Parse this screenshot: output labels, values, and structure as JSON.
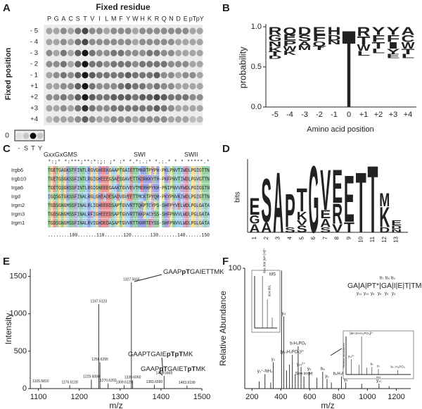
{
  "residue_colors": {
    "DE": "#d7191c",
    "KRH": "#2c3fd1",
    "STNQ": "#1f9e3f",
    "G": "#f5a623",
    "P": "#e0c51a",
    "AVLIMC": "#4aa3df",
    "FWY": "#8e44ad"
  },
  "panel_a": {
    "label": "A",
    "title": "Fixed residue",
    "y_label": "Fixed position",
    "columns": [
      "P",
      "G",
      "A",
      "C",
      "S",
      "T",
      "V",
      "I",
      "L",
      "M",
      "F",
      "Y",
      "W",
      "H",
      "K",
      "R",
      "Q",
      "N",
      "D",
      "E",
      "pT",
      "pY"
    ],
    "rows": [
      "- 5",
      "- 4",
      "- 3",
      "- 2",
      "- 1",
      "+1",
      "+2",
      "+3",
      "+4"
    ],
    "values": [
      [
        0.3,
        0.3,
        0.4,
        0.3,
        0.5,
        0.7,
        0.4,
        0.4,
        0.3,
        0.4,
        0.4,
        0.4,
        0.3,
        0.4,
        0.4,
        0.4,
        0.4,
        0.4,
        0.4,
        0.4,
        0.3,
        0.3
      ],
      [
        0.3,
        0.3,
        0.4,
        0.3,
        0.5,
        0.7,
        0.4,
        0.4,
        0.4,
        0.4,
        0.4,
        0.4,
        0.3,
        0.4,
        0.4,
        0.4,
        0.4,
        0.4,
        0.3,
        0.3,
        0.3,
        0.3
      ],
      [
        0.4,
        0.3,
        0.5,
        0.3,
        0.6,
        0.9,
        0.5,
        0.4,
        0.4,
        0.5,
        0.5,
        0.4,
        0.4,
        0.4,
        0.5,
        0.5,
        0.4,
        0.4,
        0.3,
        0.3,
        0.3,
        0.3
      ],
      [
        0.4,
        0.4,
        0.5,
        0.3,
        0.6,
        0.9,
        0.5,
        0.5,
        0.4,
        0.5,
        0.5,
        0.5,
        0.4,
        0.5,
        0.5,
        0.5,
        0.5,
        0.4,
        0.4,
        0.4,
        0.3,
        0.3
      ],
      [
        0.3,
        0.4,
        0.5,
        0.4,
        0.6,
        0.9,
        0.6,
        0.5,
        0.5,
        0.5,
        0.5,
        0.6,
        0.5,
        0.5,
        0.5,
        0.6,
        0.4,
        0.4,
        0.3,
        0.4,
        0.4,
        0.3
      ],
      [
        0.3,
        0.3,
        0.4,
        0.4,
        0.6,
        0.9,
        0.5,
        0.4,
        0.4,
        0.4,
        0.5,
        0.6,
        0.5,
        0.5,
        0.4,
        0.5,
        0.4,
        0.4,
        0.3,
        0.3,
        0.3,
        0.3
      ],
      [
        0.4,
        0.4,
        0.5,
        0.4,
        0.6,
        0.9,
        0.6,
        0.5,
        0.5,
        0.6,
        0.6,
        0.6,
        0.5,
        0.6,
        0.6,
        0.7,
        0.6,
        0.5,
        0.5,
        0.5,
        0.4,
        0.4
      ],
      [
        0.3,
        0.3,
        0.4,
        0.3,
        0.5,
        0.8,
        0.5,
        0.4,
        0.4,
        0.5,
        0.5,
        0.5,
        0.5,
        0.5,
        0.5,
        0.6,
        0.5,
        0.4,
        0.3,
        0.3,
        0.3,
        0.3
      ],
      [
        0.2,
        0.3,
        0.3,
        0.3,
        0.4,
        0.6,
        0.4,
        0.3,
        0.3,
        0.4,
        0.4,
        0.4,
        0.3,
        0.4,
        0.4,
        0.4,
        0.4,
        0.3,
        0.3,
        0.3,
        0.2,
        0.2
      ]
    ],
    "control_label": "0",
    "control_columns": [
      "-",
      "S",
      "T",
      "Y"
    ],
    "control_values": [
      0.05,
      0.15,
      0.95,
      0.15
    ]
  },
  "panel_b": {
    "label": "B",
    "y_label": "probability",
    "x_label": "Amino acid position",
    "categories": [
      "-5",
      "-4",
      "-3",
      "-2",
      "-1",
      "0",
      "+1",
      "+2",
      "+3",
      "+4"
    ],
    "ylim": [
      0,
      1
    ],
    "yticks": [
      {
        "value": 0,
        "label": "0.0"
      },
      {
        "value": 0.5,
        "label": "0.5"
      },
      {
        "value": 1,
        "label": "1.0"
      }
    ],
    "stacks": [
      [
        {
          "letter": "R",
          "p": 0.1
        },
        {
          "letter": "G",
          "p": 0.08
        },
        {
          "letter": "N",
          "p": 0.07
        },
        {
          "letter": "K",
          "p": 0.06
        },
        {
          "letter": "T",
          "p": 0.05
        },
        {
          "letter": "D",
          "p": 0.04
        }
      ],
      [
        {
          "letter": "Q",
          "p": 0.09
        },
        {
          "letter": "E",
          "p": 0.08
        },
        {
          "letter": "P",
          "p": 0.07
        },
        {
          "letter": "W",
          "p": 0.06
        },
        {
          "letter": "K",
          "p": 0.05
        }
      ],
      [
        {
          "letter": "D",
          "p": 0.1
        },
        {
          "letter": "S",
          "p": 0.08
        },
        {
          "letter": "A",
          "p": 0.06
        },
        {
          "letter": "M",
          "p": 0.05
        }
      ],
      [
        {
          "letter": "E",
          "p": 0.1
        },
        {
          "letter": "F",
          "p": 0.08
        },
        {
          "letter": "Q",
          "p": 0.06
        },
        {
          "letter": "T",
          "p": 0.05
        }
      ],
      [
        {
          "letter": "H",
          "p": 0.1
        },
        {
          "letter": "D",
          "p": 0.07
        },
        {
          "letter": "N",
          "p": 0.05
        }
      ],
      [
        {
          "letter": "T",
          "p": 1
        }
      ],
      [
        {
          "letter": "R",
          "p": 0.12
        },
        {
          "letter": "T",
          "p": 0.1
        },
        {
          "letter": "W",
          "p": 0.08
        },
        {
          "letter": "L",
          "p": 0.06
        }
      ],
      [
        {
          "letter": "Y",
          "p": 0.1
        },
        {
          "letter": "F",
          "p": 0.09
        },
        {
          "letter": "T",
          "p": 0.08
        },
        {
          "letter": "L",
          "p": 0.06
        }
      ],
      [
        {
          "letter": "Y",
          "p": 0.1
        },
        {
          "letter": "F",
          "p": 0.09
        },
        {
          "letter": "I",
          "p": 0.08
        },
        {
          "letter": "Y",
          "p": 0.07
        },
        {
          "letter": "E",
          "p": 0.05
        }
      ],
      [
        {
          "letter": "A",
          "p": 0.1
        },
        {
          "letter": "C",
          "p": 0.09
        },
        {
          "letter": "W",
          "p": 0.08
        },
        {
          "letter": "T",
          "p": 0.07
        },
        {
          "letter": "L",
          "p": 0.05
        }
      ]
    ]
  },
  "panel_c": {
    "label": "C",
    "motifs": [
      "GxxGxGMS",
      "SWI",
      "SWII"
    ],
    "conservation": "*:;* *:***;**:*:;: ;*  :*  *.*:.:*   *.:.*  * * *****.*",
    "rows": [
      {
        "name": "Irgb6",
        "sequence": "TGETGAGKSTFINTLRGVGHEEKGAAPTGAIETTMKRTPYPH-PKLPNVTIWDLPGIGTTN"
      },
      {
        "name": "Irgb10",
        "sequence": "TGETGSGKSSFINTLRGIGHEEEGSAESGAVETTKDRKKYTH-PKFPNVTIWDLPGVGTTN"
      },
      {
        "name": "Irga6",
        "sequence": "TGETGSGKSSFINTLRGIGNEEEGAAKTGVVEVTMERHPYKH-PNIPNVVFWDLPGIGSTN"
      },
      {
        "name": "Irgd",
        "sequence": "IGQSGTGKSSFINALRGLGHEADESADVGVEETTMCKTPYQH-PKYPNVKIWDLPGIGTTN"
      },
      {
        "name": "Irgm2",
        "sequence": "TGDSGNGMSSFINALRLIGHEEEDSAPTGVVRTTQKPTCYPS-SHFPYVELWDLPGLGATA"
      },
      {
        "name": "Irgm3",
        "sequence": "TGDSGNGMSSFINALRFIGHEEEDSAPTGVVRTTKKPACYSS-SHFPNVVLWDLPGLGATA"
      },
      {
        "name": "Irgm1",
        "sequence": "TGDSGNGMSSFINALRVIGHDEDASAPTGVVRTTKRRTEYSS-SHFPNVVLWDLPGLGATA"
      }
    ],
    "ruler": "........100.......110.......120.......130.......140......150"
  },
  "panel_d": {
    "label": "D",
    "y_label": "bits",
    "categories": [
      "1",
      "2",
      "3",
      "4",
      "5",
      "6",
      "7",
      "8",
      "9",
      "10",
      "11",
      "12",
      "13"
    ],
    "ylim": [
      0,
      4.2
    ],
    "stacks": [
      [
        {
          "letter": "A",
          "bits": 0.5
        },
        {
          "letter": "G",
          "bits": 0.5
        },
        {
          "letter": "E",
          "bits": 1.0
        }
      ],
      [
        {
          "letter": "A",
          "bits": 0.6
        },
        {
          "letter": "S",
          "bits": 2.6
        }
      ],
      [
        {
          "letter": "A",
          "bits": 3.6
        }
      ],
      [
        {
          "letter": "S",
          "bits": 0.3
        },
        {
          "letter": "P",
          "bits": 2.0
        }
      ],
      [
        {
          "letter": "S",
          "bits": 0.4
        },
        {
          "letter": "V",
          "bits": 0.3
        },
        {
          "letter": "K",
          "bits": 0.5
        },
        {
          "letter": "T",
          "bits": 1.4
        }
      ],
      [
        {
          "letter": "G",
          "bits": 4.0
        }
      ],
      [
        {
          "letter": "S",
          "bits": 0.3
        },
        {
          "letter": "A",
          "bits": 0.5
        },
        {
          "letter": "E",
          "bits": 0.5
        },
        {
          "letter": "V",
          "bits": 2.4
        }
      ],
      [
        {
          "letter": "V",
          "bits": 0.5
        },
        {
          "letter": "R",
          "bits": 1.2
        },
        {
          "letter": "E",
          "bits": 2.0
        }
      ],
      [
        {
          "letter": "T",
          "bits": 0.6
        },
        {
          "letter": "E",
          "bits": 2.8
        }
      ],
      [
        {
          "letter": "T",
          "bits": 3.6
        }
      ],
      [
        {
          "letter": "T",
          "bits": 4.0
        }
      ],
      [
        {
          "letter": "D",
          "bits": 0.3
        },
        {
          "letter": "K",
          "bits": 1.2
        },
        {
          "letter": "M",
          "bits": 0.8
        }
      ],
      [
        {
          "letter": "N",
          "bits": 0.2
        },
        {
          "letter": "D",
          "bits": 0.2
        },
        {
          "letter": "E",
          "bits": 0.3
        }
      ]
    ]
  },
  "panel_e": {
    "label": "E",
    "x_label": "m/z",
    "y_label": "Intensity",
    "xlim": [
      1080,
      1500
    ],
    "xticks": [
      1100,
      1200,
      1300,
      1400,
      1500
    ],
    "ylim": [
      0,
      1600
    ],
    "yticks": [
      0,
      500,
      1000,
      1500
    ],
    "annotations": [
      [
        {
          "text": "GAAP"
        },
        {
          "text": "pT",
          "bold": true
        },
        {
          "text": "GAIETTMK"
        }
      ],
      [
        {
          "text": "GAAPTGAIE"
        },
        {
          "text": "pTpT",
          "bold": true
        },
        {
          "text": "MK"
        }
      ],
      [
        {
          "text": "GAAP"
        },
        {
          "text": "pT",
          "bold": true
        },
        {
          "text": "GAIET"
        },
        {
          "text": "pT",
          "bold": true
        },
        {
          "text": "MK"
        }
      ]
    ],
    "peaks": [
      {
        "mz": 1105.581,
        "intensity": 60,
        "label": "1105.5810"
      },
      {
        "mz": 1176.6128,
        "intensity": 45,
        "label": "1176.6128"
      },
      {
        "mz": 1229.608,
        "intensity": 120,
        "label": "1229.6080"
      },
      {
        "mz": 1247.6123,
        "intensity": 1130,
        "label": "1247.6123"
      },
      {
        "mz": 1250.6255,
        "intensity": 350,
        "label": "1250.6255"
      },
      {
        "mz": 1270.6202,
        "intensity": 70,
        "label": "1270.6202"
      },
      {
        "mz": 1309.6125,
        "intensity": 45,
        "label": "1309.6125"
      },
      {
        "mz": 1327.5656,
        "intensity": 1420,
        "label": "1327.5656"
      },
      {
        "mz": 1330.605,
        "intensity": 110,
        "label": "1330.6050"
      },
      {
        "mz": 1383.659,
        "intensity": 50,
        "label": "1383.6590"
      },
      {
        "mz": 1407.5668,
        "intensity": 170,
        "label": "1407.5668"
      },
      {
        "mz": 1463.6199,
        "intensity": 40,
        "label": "1463.6199"
      }
    ]
  },
  "panel_f": {
    "label": "F",
    "x_label": "m/z",
    "y_label": "Relative Abundance",
    "xlim": [
      150,
      1300
    ],
    "xticks": [
      200,
      400,
      600,
      800,
      1000,
      1200
    ],
    "ylim": [
      0,
      100
    ],
    "yticks": [
      100
    ],
    "sequence": "GA|A|PT*|GA|I|E|T|TMK",
    "b_ions": [
      "b₇",
      "b₈",
      "b₉"
    ],
    "y_ions": [
      "y₁₁",
      "y₁₀",
      "y₈",
      "y₆",
      "y₅",
      "y₄"
    ],
    "peaks": [
      {
        "mz": 250,
        "intensity": 6,
        "label": null
      },
      {
        "mz": 290,
        "intensity": 12,
        "label": "y₂⁺-NH₃"
      },
      {
        "mz": 330,
        "intensity": 5,
        "label": null
      },
      {
        "mz": 347,
        "intensity": 22,
        "label": "y₃"
      },
      {
        "mz": 405,
        "intensity": 98,
        "label": null
      },
      {
        "mz": 420,
        "intensity": 60,
        "label": "y₄"
      },
      {
        "mz": 440,
        "intensity": 15,
        "label": null
      },
      {
        "mz": 460,
        "intensity": 20,
        "label": null
      },
      {
        "mz": 480,
        "intensity": 28,
        "label": "(y₁₀H₃PO₄)²⁺"
      },
      {
        "mz": 500,
        "intensity": 12,
        "label": null
      },
      {
        "mz": 520,
        "intensity": 35,
        "label": "b₇H₃PO₄"
      },
      {
        "mz": 540,
        "intensity": 18,
        "label": "y₁₀²⁺"
      },
      {
        "mz": 560,
        "intensity": 10,
        "label": "See inset"
      },
      {
        "mz": 596,
        "intensity": 14,
        "label": "y₅"
      },
      {
        "mz": 650,
        "intensity": 9,
        "label": null
      },
      {
        "mz": 690,
        "intensity": 14,
        "label": "b₈"
      },
      {
        "mz": 720,
        "intensity": 8,
        "label": "y₆"
      },
      {
        "mz": 750,
        "intensity": 5,
        "label": null
      },
      {
        "mz": 820,
        "intensity": 10,
        "label": "b₉H₃PO₄"
      },
      {
        "mz": 850,
        "intensity": 5,
        "label": "y₈"
      },
      {
        "mz": 960,
        "intensity": 4,
        "label": null
      },
      {
        "mz": 1080,
        "intensity": 4,
        "label": "y₁₀"
      },
      {
        "mz": 1150,
        "intensity": 2,
        "label": null
      }
    ],
    "insets": [
      {
        "title": "MS",
        "xlim": [
          663.5,
          665.8
        ],
        "ylim": [
          0,
          100
        ],
        "peaks": [
          {
            "mz": 664.3,
            "intensity": 100,
            "label": "664.300 [M+2H]²⁺"
          },
          {
            "mz": 664.801,
            "intensity": 55,
            "label": "664.801"
          },
          {
            "mz": 665.3,
            "intensity": 20,
            "label": null
          }
        ]
      },
      {
        "x_label": "m/z",
        "y_label": "Relative Abundance",
        "xlim": [
          600,
          700
        ],
        "ylim": [
          0,
          100
        ],
        "peaks": [
          {
            "mz": 608,
            "intensity": 40,
            "label": "y₁₁²⁺"
          },
          {
            "mz": 620,
            "intensity": 25,
            "label": null
          },
          {
            "mz": 624,
            "intensity": 100,
            "label": "[M+2H-H₃PO₄]²⁺"
          },
          {
            "mz": 632,
            "intensity": 18,
            "label": null
          },
          {
            "mz": 640,
            "intensity": 20,
            "label": "b₇"
          },
          {
            "mz": 650,
            "intensity": 15,
            "label": "y₅"
          },
          {
            "mz": 680,
            "intensity": 12,
            "label": "b₇- H₃PO₄"
          }
        ]
      }
    ]
  }
}
